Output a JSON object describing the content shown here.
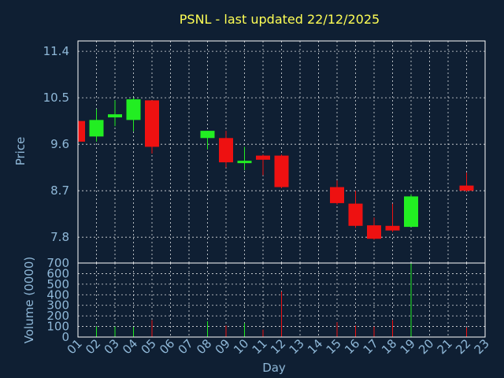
{
  "chart_data": {
    "type": "candlestick",
    "title": "PSNL - last updated 22/12/2025",
    "xlabel": "Day",
    "x_ticks": [
      "01",
      "02",
      "03",
      "04",
      "05",
      "06",
      "07",
      "08",
      "09",
      "10",
      "11",
      "12",
      "13",
      "14",
      "15",
      "16",
      "17",
      "18",
      "19",
      "20",
      "21",
      "22",
      "23"
    ],
    "price_panel": {
      "ylabel": "Price",
      "ylim": [
        7.3,
        11.6
      ],
      "y_ticks": [
        "11.4",
        "10.5",
        "9.6",
        "8.7",
        "7.8"
      ],
      "grid": true
    },
    "volume_panel": {
      "ylabel": "Volume (0000)",
      "ylim": [
        0,
        700
      ],
      "y_ticks": [
        "700",
        "600",
        "500",
        "400",
        "300",
        "200",
        "100",
        "0"
      ],
      "grid": true
    },
    "colors": {
      "up": "#22ee22",
      "down": "#ee1111",
      "background": "#0f1f33",
      "title": "#ffff55",
      "tick": "#8fb8d8"
    },
    "candles": [
      {
        "day": 1,
        "open": 10.05,
        "high": 10.05,
        "low": 9.65,
        "close": 9.65
      },
      {
        "day": 2,
        "open": 9.75,
        "high": 10.28,
        "low": 9.65,
        "close": 10.07
      },
      {
        "day": 3,
        "open": 10.12,
        "high": 10.45,
        "low": 9.95,
        "close": 10.18
      },
      {
        "day": 4,
        "open": 10.07,
        "high": 10.5,
        "low": 9.85,
        "close": 10.47
      },
      {
        "day": 5,
        "open": 10.45,
        "high": 10.45,
        "low": 9.42,
        "close": 9.55
      },
      {
        "day": 8,
        "open": 9.72,
        "high": 9.86,
        "low": 9.5,
        "close": 9.86
      },
      {
        "day": 9,
        "open": 9.72,
        "high": 9.86,
        "low": 9.15,
        "close": 9.25
      },
      {
        "day": 10,
        "open": 9.25,
        "high": 9.55,
        "low": 9.1,
        "close": 9.28
      },
      {
        "day": 11,
        "open": 9.38,
        "high": 9.4,
        "low": 9.0,
        "close": 9.3
      },
      {
        "day": 12,
        "open": 9.38,
        "high": 9.4,
        "low": 8.75,
        "close": 8.77
      },
      {
        "day": 15,
        "open": 8.77,
        "high": 8.9,
        "low": 8.43,
        "close": 8.46
      },
      {
        "day": 16,
        "open": 8.45,
        "high": 8.7,
        "low": 7.98,
        "close": 8.02
      },
      {
        "day": 17,
        "open": 8.03,
        "high": 8.18,
        "low": 7.75,
        "close": 7.77
      },
      {
        "day": 18,
        "open": 8.02,
        "high": 8.45,
        "low": 7.9,
        "close": 7.93
      },
      {
        "day": 19,
        "open": 8.0,
        "high": 8.63,
        "low": 8.0,
        "close": 8.59
      },
      {
        "day": 22,
        "open": 8.8,
        "high": 9.05,
        "low": 8.68,
        "close": 8.7
      }
    ],
    "volume": [
      {
        "day": 1,
        "value": 0,
        "dir": "down"
      },
      {
        "day": 2,
        "value": 100,
        "dir": "up"
      },
      {
        "day": 3,
        "value": 100,
        "dir": "up"
      },
      {
        "day": 4,
        "value": 95,
        "dir": "up"
      },
      {
        "day": 5,
        "value": 160,
        "dir": "down"
      },
      {
        "day": 8,
        "value": 150,
        "dir": "up"
      },
      {
        "day": 9,
        "value": 110,
        "dir": "down"
      },
      {
        "day": 10,
        "value": 130,
        "dir": "up"
      },
      {
        "day": 11,
        "value": 70,
        "dir": "down"
      },
      {
        "day": 12,
        "value": 430,
        "dir": "down"
      },
      {
        "day": 15,
        "value": 140,
        "dir": "down"
      },
      {
        "day": 16,
        "value": 110,
        "dir": "down"
      },
      {
        "day": 17,
        "value": 100,
        "dir": "down"
      },
      {
        "day": 18,
        "value": 160,
        "dir": "down"
      },
      {
        "day": 19,
        "value": 700,
        "dir": "up"
      },
      {
        "day": 22,
        "value": 90,
        "dir": "down"
      }
    ]
  }
}
